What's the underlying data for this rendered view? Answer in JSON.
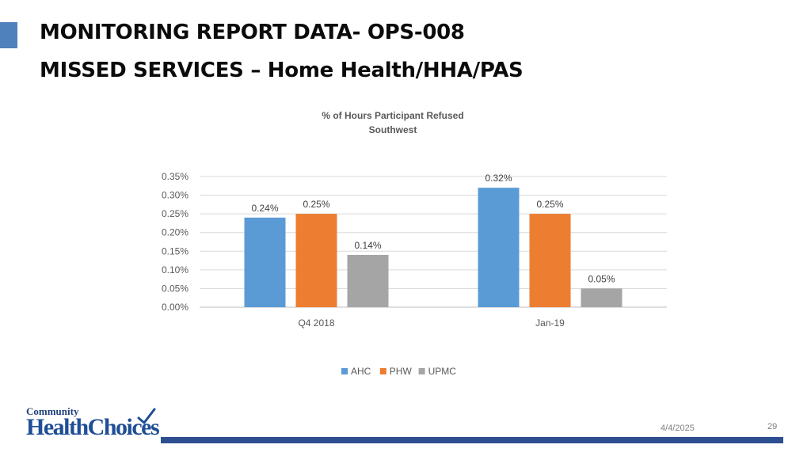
{
  "slide": {
    "title_line1": "MONITORING REPORT DATA- OPS-008",
    "title_line2": "MISSED SERVICES – Home Health/HHA/PAS",
    "date": "4/4/2025",
    "page_number": "29",
    "logo_text_top": "Community",
    "logo_text_main": "HealthChoices"
  },
  "colors": {
    "accent": "#4f81bd",
    "footer_bar": "#2e4f8f",
    "AHC": "#5b9bd5",
    "PHW": "#ed7d31",
    "UPMC": "#a5a5a5"
  },
  "chart_data": {
    "type": "bar",
    "title": "% of Hours Participant Refused",
    "subtitle": "Southwest",
    "categories": [
      "Q4 2018",
      "Jan-19"
    ],
    "series": [
      {
        "name": "AHC",
        "values": [
          0.24,
          0.32
        ],
        "labels": [
          "0.24%",
          "0.32%"
        ]
      },
      {
        "name": "PHW",
        "values": [
          0.25,
          0.25
        ],
        "labels": [
          "0.25%",
          "0.25%"
        ]
      },
      {
        "name": "UPMC",
        "values": [
          0.14,
          0.05
        ],
        "labels": [
          "0.14%",
          "0.05%"
        ]
      }
    ],
    "yticks": [
      "0.00%",
      "0.05%",
      "0.10%",
      "0.15%",
      "0.20%",
      "0.25%",
      "0.30%",
      "0.35%"
    ],
    "ylim": [
      0,
      0.35
    ],
    "grid": true,
    "legend": "bottom"
  }
}
